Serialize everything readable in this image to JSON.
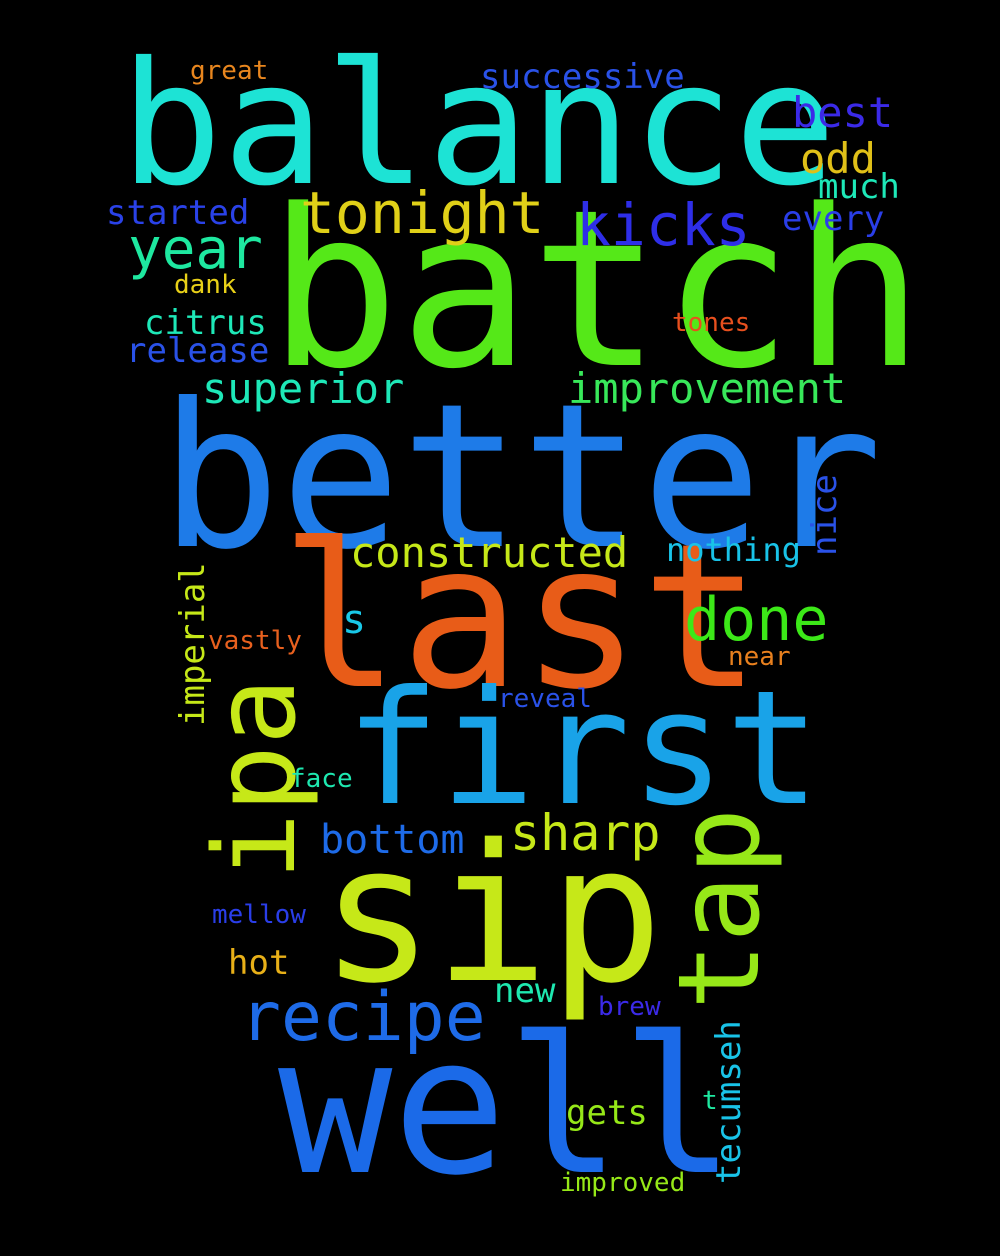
{
  "words": [
    {
      "text": "balance",
      "color": "#1de3d5"
    },
    {
      "text": "batch",
      "color": "#55e818"
    },
    {
      "text": "better",
      "color": "#1e7be8"
    },
    {
      "text": "last",
      "color": "#e85c18"
    },
    {
      "text": "first",
      "color": "#19a3e8"
    },
    {
      "text": "sip",
      "color": "#c6e818"
    },
    {
      "text": "well",
      "color": "#1b6ae8"
    },
    {
      "text": "ipa",
      "color": "#c6e818"
    },
    {
      "text": "tap",
      "color": "#96e818"
    },
    {
      "text": "tonight",
      "color": "#e0d018"
    },
    {
      "text": "kicks",
      "color": "#2e2ee8"
    },
    {
      "text": "year",
      "color": "#1ee8a0"
    },
    {
      "text": "done",
      "color": "#3ce818"
    },
    {
      "text": "recipe",
      "color": "#1e6be8"
    },
    {
      "text": "improvement",
      "color": "#38e85a"
    },
    {
      "text": "constructed",
      "color": "#c6e818"
    },
    {
      "text": "superior",
      "color": "#1ee8b8"
    },
    {
      "text": "sharp",
      "color": "#c6e818"
    },
    {
      "text": "bottom",
      "color": "#1e6be8"
    },
    {
      "text": "successive",
      "color": "#2a52e8"
    },
    {
      "text": "best",
      "color": "#3b2ae8"
    },
    {
      "text": "odd",
      "color": "#e0c018"
    },
    {
      "text": "much",
      "color": "#1ee8b8"
    },
    {
      "text": "every",
      "color": "#2a3ee8"
    },
    {
      "text": "started",
      "color": "#2a42e8"
    },
    {
      "text": "great",
      "color": "#e8861e"
    },
    {
      "text": "dank",
      "color": "#e8d018"
    },
    {
      "text": "citrus",
      "color": "#1ee8b8"
    },
    {
      "text": "release",
      "color": "#2a52e8"
    },
    {
      "text": "tones",
      "color": "#e8501e"
    },
    {
      "text": "nothing",
      "color": "#19c3e8"
    },
    {
      "text": "nice",
      "color": "#2a52e8"
    },
    {
      "text": "s",
      "color": "#19c8e8"
    },
    {
      "text": "vastly",
      "color": "#e8601e"
    },
    {
      "text": "near",
      "color": "#e8801e"
    },
    {
      "text": "reveal",
      "color": "#2a52e8"
    },
    {
      "text": "imperial",
      "color": "#c6e818"
    },
    {
      "text": "face",
      "color": "#1ee8b0"
    },
    {
      "text": "mellow",
      "color": "#2a3ee8"
    },
    {
      "text": "hot",
      "color": "#e8b018"
    },
    {
      "text": "new",
      "color": "#1ee8b0"
    },
    {
      "text": "brew",
      "color": "#3b2ae8"
    },
    {
      "text": "tecumseh",
      "color": "#19c3e8"
    },
    {
      "text": "gets",
      "color": "#96e818"
    },
    {
      "text": "t",
      "color": "#1ee8a0"
    },
    {
      "text": "improved",
      "color": "#96e818"
    }
  ]
}
